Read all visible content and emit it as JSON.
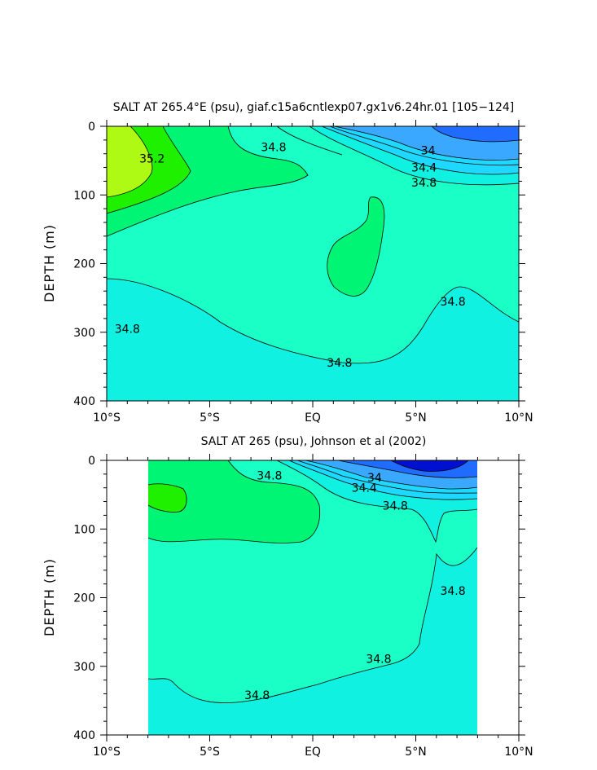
{
  "colors": {
    "salt_34_0": "#3aa8ff",
    "salt_34_4": "#1fd8ff",
    "salt_34_6": "#11f1e2",
    "salt_34_8": "#19ffc6",
    "salt_35_0": "#00f575",
    "salt_35_2": "#1ff000",
    "salt_35_4": "#aefa14",
    "salt_33_4": "#0010d0",
    "salt_33_8": "#1f6cff",
    "contour_line": "#000000"
  },
  "chart_data": [
    {
      "type": "contour",
      "title": "SALT AT 265.4°E (psu), giaf.c15a6cntlexp07.gx1v6.24hr.01 [105−124]",
      "ylabel": "DEPTH (m)",
      "xlim": [
        -10,
        10
      ],
      "ylim": [
        400,
        0
      ],
      "x_ticks": [
        -10,
        -5,
        0,
        5,
        10
      ],
      "x_tick_labels": [
        "10°S",
        "5°S",
        "EQ",
        "5°N",
        "10°N"
      ],
      "y_ticks": [
        0,
        100,
        200,
        300,
        400
      ],
      "y_tick_labels": [
        "0",
        "100",
        "200",
        "300",
        "400"
      ],
      "contour_labels": [
        {
          "text": "35.2",
          "x": -7.8,
          "y": 47
        },
        {
          "text": "34.8",
          "x": -1.9,
          "y": 30
        },
        {
          "text": "34",
          "x": 5.6,
          "y": 35
        },
        {
          "text": "34.4",
          "x": 5.4,
          "y": 60
        },
        {
          "text": "34.8",
          "x": 5.4,
          "y": 82
        },
        {
          "text": "34.8",
          "x": -9.0,
          "y": 295
        },
        {
          "text": "34.8",
          "x": 1.3,
          "y": 344
        },
        {
          "text": "34.8",
          "x": 6.8,
          "y": 255
        }
      ]
    },
    {
      "type": "contour",
      "title": "SALT AT 265 (psu), Johnson et al (2002)",
      "ylabel": "DEPTH (m)",
      "xlim": [
        -10,
        10
      ],
      "ylim": [
        400,
        0
      ],
      "x_ticks": [
        -10,
        -5,
        0,
        5,
        10
      ],
      "x_tick_labels": [
        "10°S",
        "5°S",
        "EQ",
        "5°N",
        "10°N"
      ],
      "y_ticks": [
        0,
        100,
        200,
        300,
        400
      ],
      "y_tick_labels": [
        "0",
        "100",
        "200",
        "300",
        "400"
      ],
      "contour_labels": [
        {
          "text": "34.8",
          "x": -2.1,
          "y": 22
        },
        {
          "text": "34",
          "x": 3.0,
          "y": 25
        },
        {
          "text": "34.4",
          "x": 2.5,
          "y": 40
        },
        {
          "text": "34.8",
          "x": 4.0,
          "y": 66
        },
        {
          "text": "34.8",
          "x": 6.8,
          "y": 190
        },
        {
          "text": "34.8",
          "x": 3.2,
          "y": 289
        },
        {
          "text": "34.8",
          "x": -2.7,
          "y": 342
        }
      ]
    }
  ]
}
